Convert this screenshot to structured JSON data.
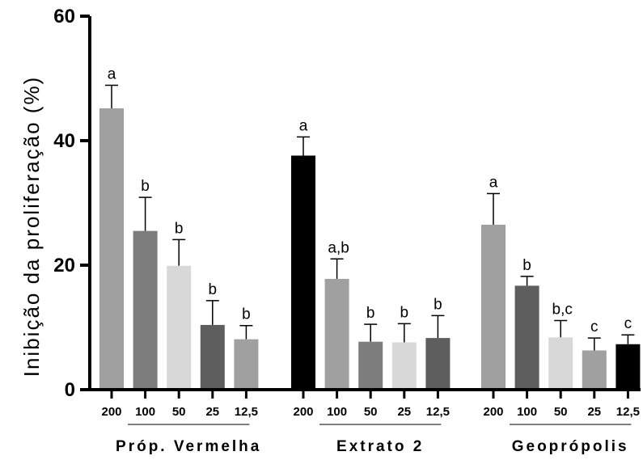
{
  "chart_data": {
    "type": "bar",
    "title": "",
    "xlabel": "",
    "ylabel": "Inibição da proliferação (%)",
    "ylim": [
      0,
      60
    ],
    "yticks": [
      0,
      20,
      40,
      60
    ],
    "grid": false,
    "groups": [
      {
        "name": "Próp. Vermelha",
        "bars": [
          {
            "label": "200",
            "value": 45.2,
            "error": 3.7,
            "sig": "a",
            "color": "#a0a0a0"
          },
          {
            "label": "100",
            "value": 25.5,
            "error": 5.4,
            "sig": "b",
            "color": "#7d7d7d"
          },
          {
            "label": "50",
            "value": 19.9,
            "error": 4.2,
            "sig": "b",
            "color": "#d8d8d8"
          },
          {
            "label": "25",
            "value": 10.4,
            "error": 3.9,
            "sig": "b",
            "color": "#5e5e5e"
          },
          {
            "label": "12,5",
            "value": 8.1,
            "error": 2.2,
            "sig": "b",
            "color": "#a0a0a0"
          }
        ]
      },
      {
        "name": "Extrato 2",
        "bars": [
          {
            "label": "200",
            "value": 37.6,
            "error": 3.0,
            "sig": "a",
            "color": "#000000"
          },
          {
            "label": "100",
            "value": 17.8,
            "error": 3.2,
            "sig": "a,b",
            "color": "#a0a0a0"
          },
          {
            "label": "50",
            "value": 7.7,
            "error": 2.8,
            "sig": "b",
            "color": "#7d7d7d"
          },
          {
            "label": "25",
            "value": 7.6,
            "error": 3.0,
            "sig": "b",
            "color": "#d8d8d8"
          },
          {
            "label": "12,5",
            "value": 8.3,
            "error": 3.6,
            "sig": "b",
            "color": "#5e5e5e"
          }
        ]
      },
      {
        "name": "Geoprópolis",
        "bars": [
          {
            "label": "200",
            "value": 26.5,
            "error": 5.0,
            "sig": "a",
            "color": "#a0a0a0"
          },
          {
            "label": "100",
            "value": 16.7,
            "error": 1.5,
            "sig": "b",
            "color": "#5e5e5e"
          },
          {
            "label": "50",
            "value": 8.4,
            "error": 2.7,
            "sig": "b,c",
            "color": "#d8d8d8"
          },
          {
            "label": "25",
            "value": 6.3,
            "error": 2.0,
            "sig": "c",
            "color": "#a0a0a0"
          },
          {
            "label": "12,5",
            "value": 7.3,
            "error": 1.5,
            "sig": "c",
            "color": "#000000"
          }
        ]
      }
    ]
  }
}
